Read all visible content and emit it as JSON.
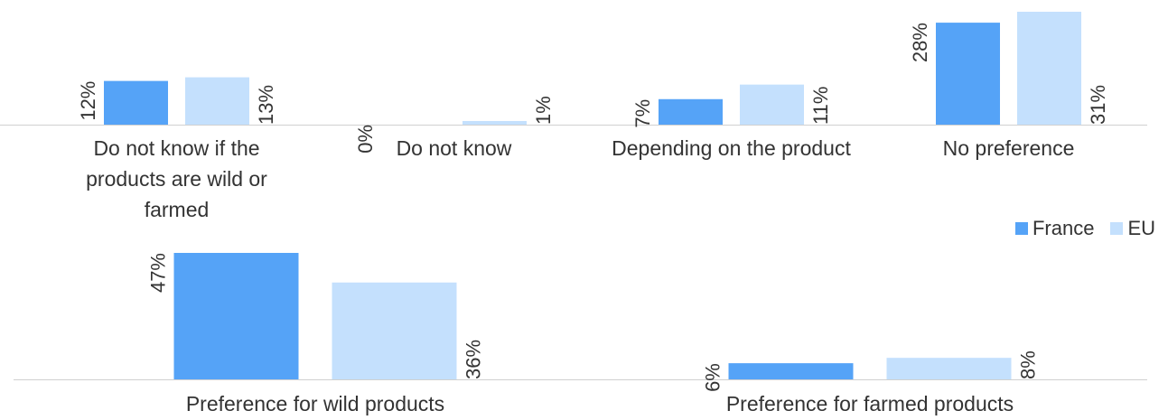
{
  "chart_data": [
    {
      "type": "bar",
      "categories": [
        [
          "Do not know if the",
          "products are wild or",
          "farmed"
        ],
        [
          "Do not know"
        ],
        [
          "Depending on the product"
        ],
        [
          "No preference"
        ]
      ],
      "series": [
        {
          "name": "France",
          "values": [
            12,
            0,
            7,
            28
          ],
          "labels": [
            "12%",
            "0%",
            "7%",
            "28%"
          ]
        },
        {
          "name": "EU",
          "values": [
            13,
            1,
            11,
            31
          ],
          "labels": [
            "13%",
            "1%",
            "11%",
            "31%"
          ]
        }
      ],
      "ylim": [
        0,
        31
      ],
      "grid": false
    },
    {
      "type": "bar",
      "categories": [
        [
          "Preference for wild products"
        ],
        [
          "Preference for farmed products"
        ]
      ],
      "series": [
        {
          "name": "France",
          "values": [
            47,
            6
          ],
          "labels": [
            "47%",
            "6%"
          ]
        },
        {
          "name": "EU",
          "values": [
            36,
            8
          ],
          "labels": [
            "36%",
            "8%"
          ]
        }
      ],
      "ylim": [
        0,
        47
      ],
      "grid": false
    }
  ],
  "legend": {
    "position": "right",
    "items": [
      {
        "label": "France",
        "color": "#55A3F7"
      },
      {
        "label": "EU",
        "color": "#C4E0FD"
      }
    ]
  },
  "colors": {
    "france": "#55A3F7",
    "eu": "#C4E0FD",
    "axis": "#D0D0D0",
    "text": "#333333"
  }
}
